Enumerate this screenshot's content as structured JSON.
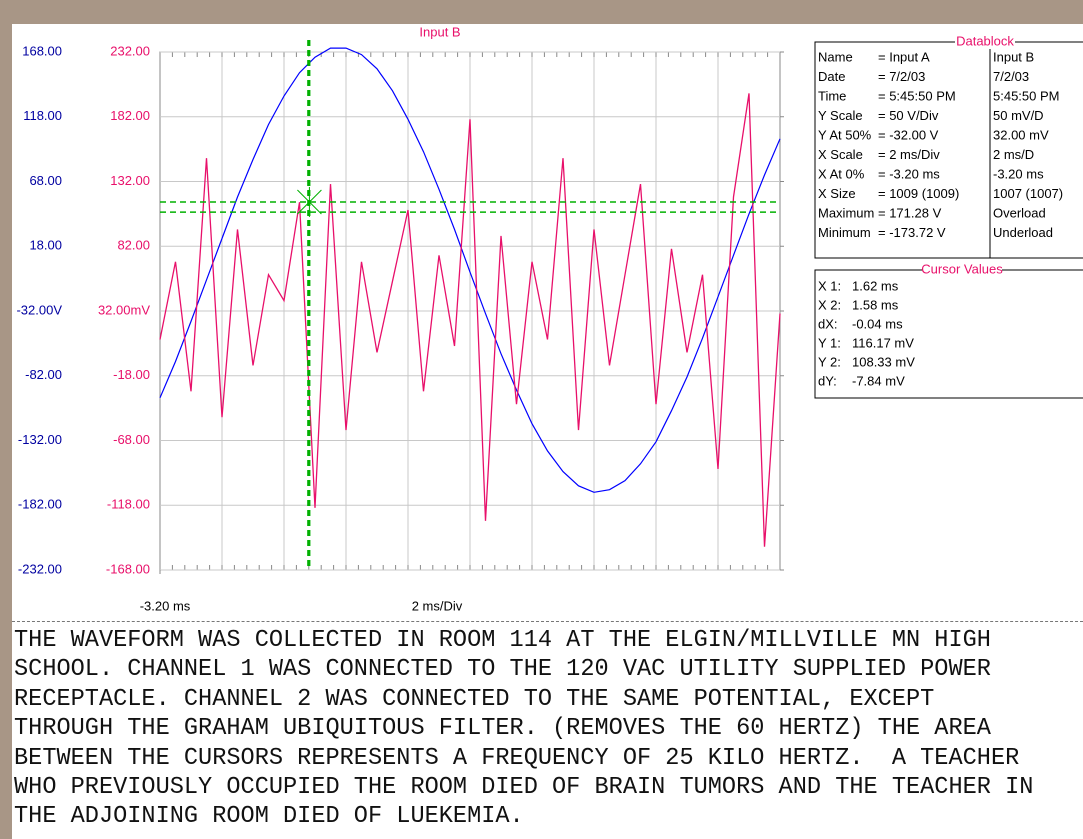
{
  "chart_data": {
    "type": "line",
    "title": "Input B",
    "x": [
      -3.2,
      -2.7,
      -2.2,
      -1.7,
      -1.2,
      -0.7,
      -0.2,
      0.3,
      0.8,
      1.3,
      1.8,
      2.3,
      2.8,
      3.3,
      3.8,
      4.3,
      4.8,
      5.3,
      5.8,
      6.3,
      6.8,
      7.3,
      7.8,
      8.3,
      8.8,
      9.3,
      9.8,
      10.3,
      10.8,
      11.3,
      11.8,
      12.3,
      12.8,
      13.3,
      13.8,
      14.3,
      14.8,
      15.3,
      15.8,
      16.3,
      16.8
    ],
    "series": [
      {
        "name": "Input A",
        "color": "#0000ff",
        "axis": "y",
        "values": [
          -99,
          -71,
          -40,
          -8,
          24,
          56,
          85,
          112,
          134,
          152,
          164,
          171,
          171,
          166,
          155,
          138,
          116,
          91,
          62,
          31,
          -2,
          -34,
          -65,
          -93,
          -119,
          -140,
          -156,
          -167,
          -172,
          -170,
          -163,
          -150,
          -133,
          -109,
          -83,
          -53,
          -21,
          11,
          43,
          73,
          101
        ]
      },
      {
        "name": "Input B",
        "color": "#e8106a",
        "axis": "y2",
        "values": [
          10,
          70,
          -30,
          150,
          -50,
          95,
          -10,
          60,
          40,
          116,
          -120,
          130,
          -60,
          70,
          0,
          55,
          110,
          -30,
          75,
          5,
          180,
          -130,
          90,
          -40,
          70,
          10,
          150,
          -60,
          95,
          -10,
          60,
          130,
          -40,
          80,
          0,
          60,
          -90,
          120,
          200,
          -150,
          30
        ]
      }
    ],
    "xlim": [
      -3.2,
      16.8
    ],
    "xticks": [
      {
        "value": -3.2,
        "label": "-3.20 ms"
      }
    ],
    "xlabel": "2 ms/Div",
    "ylim": [
      -232,
      168
    ],
    "yticks": [
      {
        "value": 168,
        "label": "168.00"
      },
      {
        "value": 118,
        "label": "118.00"
      },
      {
        "value": 68,
        "label": "68.00"
      },
      {
        "value": 18,
        "label": "18.00"
      },
      {
        "value": -32,
        "label": "-32.00V"
      },
      {
        "value": -82,
        "label": "-82.00"
      },
      {
        "value": -132,
        "label": "-132.00"
      },
      {
        "value": -182,
        "label": "-182.00"
      },
      {
        "value": -232,
        "label": "-232.00"
      }
    ],
    "y2lim": [
      -168,
      232
    ],
    "y2ticks": [
      {
        "value": 232,
        "label": "232.00"
      },
      {
        "value": 182,
        "label": "182.00"
      },
      {
        "value": 132,
        "label": "132.00"
      },
      {
        "value": 82,
        "label": "82.00"
      },
      {
        "value": 32,
        "label": "32.00mV"
      },
      {
        "value": -18,
        "label": "-18.00"
      },
      {
        "value": -68,
        "label": "-68.00"
      },
      {
        "value": -118,
        "label": "-118.00"
      },
      {
        "value": -168,
        "label": "-168.00"
      }
    ],
    "grid": true,
    "cursor_x": [
      1.62,
      1.58
    ],
    "cursor_y": [
      116.17,
      108.33
    ],
    "cursor_color": "#00b000"
  },
  "datablock": {
    "title": "Datablock",
    "rows": [
      [
        "Name",
        "= Input A",
        "Input B"
      ],
      [
        "Date",
        "= 7/2/03",
        "7/2/03"
      ],
      [
        "Time",
        "= 5:45:50 PM",
        "5:45:50 PM"
      ],
      [
        "Y Scale",
        "=  50   V/Div",
        "50   mV/D"
      ],
      [
        "Y At 50%",
        "= -32.00 V",
        "32.00 mV"
      ],
      [
        "X Scale",
        "=   2   ms/Div",
        "2   ms/D"
      ],
      [
        "X At 0%",
        "=   -3.20 ms",
        "-3.20 ms"
      ],
      [
        "X Size",
        "= 1009 (1009)",
        "1007 (1007)"
      ],
      [
        "Maximum",
        "= 171.28 V",
        "Overload"
      ],
      [
        "Minimum",
        "= -173.72 V",
        "Underload"
      ]
    ]
  },
  "cursor_values": {
    "title": "Cursor Values",
    "rows": [
      [
        "X 1:",
        "1.62 ms"
      ],
      [
        "X 2:",
        "1.58 ms"
      ],
      [
        "dX:",
        "-0.04 ms"
      ],
      [
        "Y 1:",
        "116.17 mV"
      ],
      [
        "Y 2:",
        "108.33 mV"
      ],
      [
        "dY:",
        "-7.84 mV"
      ]
    ]
  },
  "caption": {
    "lines": [
      "THE WAVEFORM WAS COLLECTED IN ROOM 114 AT THE ELGIN/MILLVILLE MN HIGH",
      "SCHOOL. CHANNEL 1 WAS CONNECTED TO THE 120 VAC UTILITY SUPPLIED POWER",
      "RECEPTACLE. CHANNEL 2 WAS CONNECTED TO THE SAME POTENTIAL, EXCEPT",
      "THROUGH THE GRAHAM UBIQUITOUS FILTER. (REMOVES THE 60 HERTZ) THE AREA",
      "BETWEEN THE CURSORS REPRESENTS A FREQUENCY OF 25 KILO HERTZ.  A TEACHER",
      "WHO PREVIOUSLY OCCUPIED THE ROOM DIED OF BRAIN TUMORS AND THE TEACHER IN",
      "THE ADJOINING ROOM DIED OF LUEKEMIA."
    ]
  }
}
